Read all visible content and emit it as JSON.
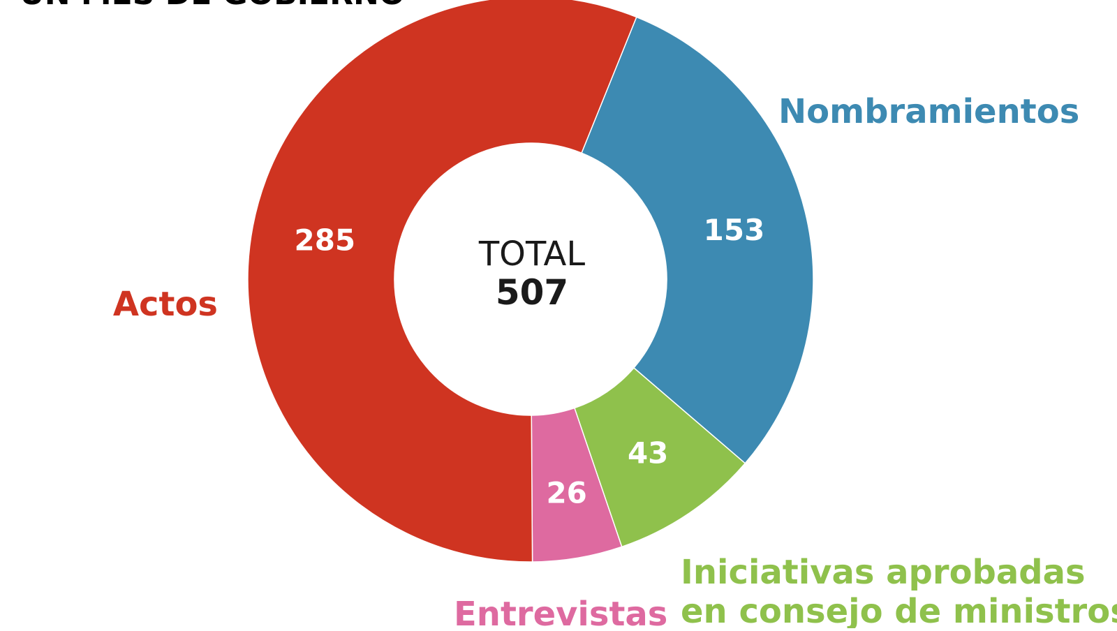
{
  "title": "UN MES DE GOBIERNO",
  "chart_data": {
    "type": "pie",
    "donut": true,
    "center_label": "TOTAL",
    "center_value": "507",
    "categories": [
      "Nombramientos",
      "Iniciativas aprobadas en consejo de ministros",
      "Entrevistas",
      "Actos"
    ],
    "values": [
      153,
      43,
      26,
      285
    ],
    "colors": [
      "#3d8ab2",
      "#8fc14c",
      "#de6aa0",
      "#cf3421"
    ],
    "legend": "labels around chart"
  }
}
